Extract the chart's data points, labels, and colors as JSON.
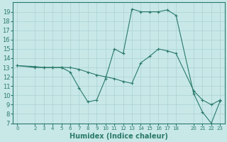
{
  "title": "",
  "xlabel": "Humidex (Indice chaleur)",
  "ylabel": "",
  "bg_color": "#c8e8e8",
  "grid_color": "#afd4d4",
  "line_color": "#2a7a6a",
  "curve1_x": [
    0,
    2,
    3,
    4,
    5,
    5,
    6,
    7,
    8,
    9,
    10,
    11,
    12,
    13,
    14,
    15,
    16,
    17,
    18,
    20,
    21,
    22,
    23
  ],
  "curve1_y": [
    13.2,
    13.0,
    13.0,
    13.0,
    13.0,
    13.0,
    12.5,
    10.8,
    9.3,
    9.5,
    11.8,
    15.0,
    14.5,
    19.3,
    19.0,
    19.0,
    19.0,
    19.2,
    18.6,
    10.2,
    8.2,
    7.0,
    9.4
  ],
  "curve2_x": [
    0,
    2,
    3,
    4,
    5,
    6,
    7,
    8,
    9,
    10,
    11,
    12,
    13,
    14,
    15,
    16,
    17,
    18,
    20,
    21,
    22,
    23
  ],
  "curve2_y": [
    13.2,
    13.1,
    13.0,
    13.0,
    13.0,
    13.0,
    12.8,
    12.5,
    12.2,
    12.0,
    11.8,
    11.5,
    11.3,
    13.5,
    14.2,
    15.0,
    14.8,
    14.5,
    10.5,
    9.5,
    9.0,
    9.5
  ],
  "ylim": [
    7,
    20
  ],
  "xlim": [
    -0.5,
    23.5
  ],
  "yticks": [
    7,
    8,
    9,
    10,
    11,
    12,
    13,
    14,
    15,
    16,
    17,
    18,
    19
  ],
  "xticks": [
    0,
    2,
    3,
    4,
    5,
    6,
    7,
    8,
    9,
    10,
    11,
    12,
    13,
    14,
    15,
    16,
    17,
    18,
    20,
    21,
    22,
    23
  ],
  "xlabel_fontsize": 7,
  "ytick_fontsize": 6,
  "xtick_fontsize": 5
}
